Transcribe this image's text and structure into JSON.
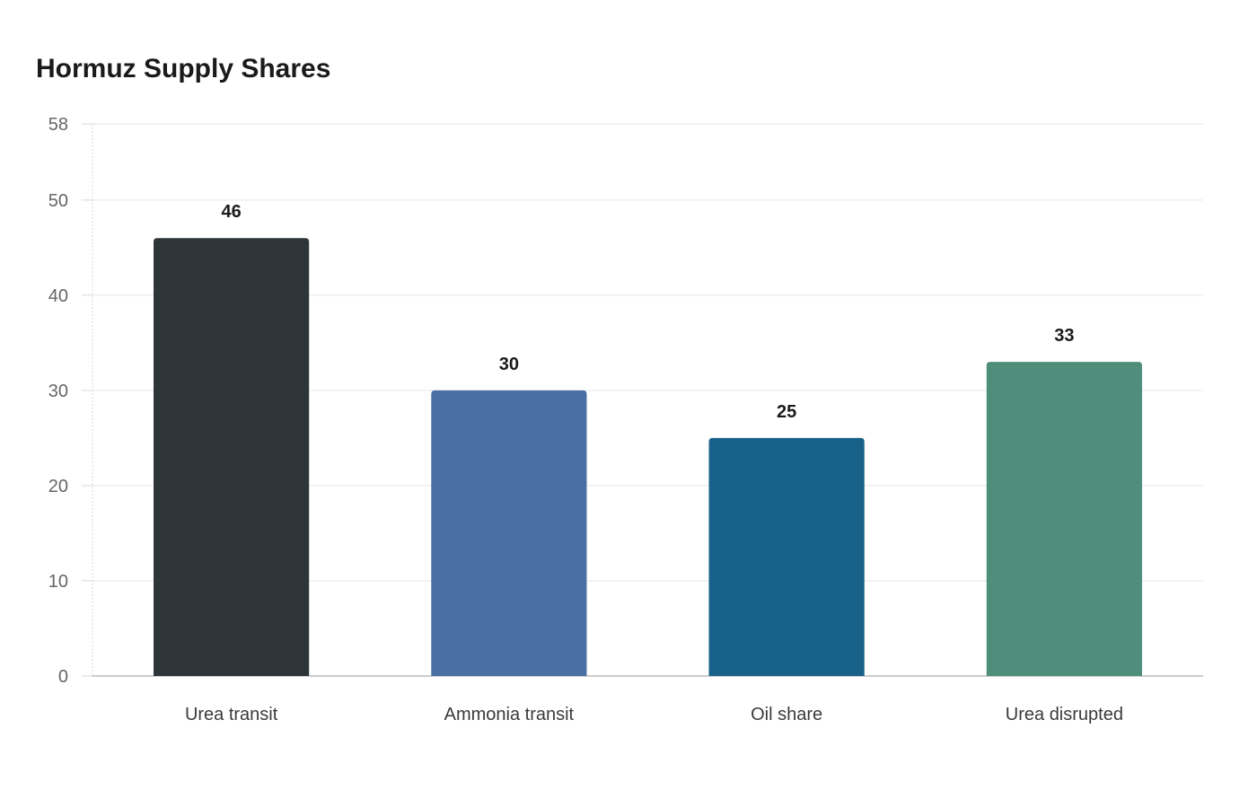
{
  "chart_data": {
    "type": "bar",
    "title": "Hormuz Supply Shares",
    "xlabel": "",
    "ylabel": "",
    "categories": [
      "Urea transit",
      "Ammonia transit",
      "Oil share",
      "Urea disrupted"
    ],
    "values": [
      46,
      30,
      25,
      33
    ],
    "colors": [
      "#2d3538",
      "#4a6fa5",
      "#186189",
      "#4e8e7b"
    ],
    "ylim": [
      0,
      58
    ],
    "yticks": [
      0,
      10,
      20,
      30,
      40,
      50,
      58
    ],
    "grid": true,
    "legend": "none"
  }
}
